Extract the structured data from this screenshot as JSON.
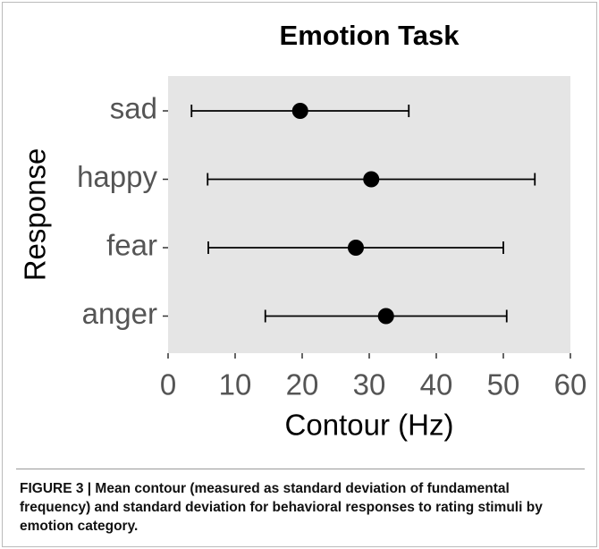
{
  "chart_data": {
    "type": "errorbar",
    "title": "Emotion Task",
    "xlabel": "Contour (Hz)",
    "ylabel": "Response",
    "categories": [
      "sad",
      "happy",
      "fear",
      "anger"
    ],
    "values": [
      19.7,
      30.3,
      28,
      32.5
    ],
    "errors": [
      16.2,
      24.4,
      22,
      18
    ],
    "color": "#000000",
    "panel_color": "#e5e5e5",
    "xlim": [
      0,
      60
    ],
    "xticks": [
      0,
      10,
      20,
      30,
      40,
      50,
      60
    ],
    "grid": false
  },
  "caption": "FIGURE 3 | Mean contour (measured as standard deviation of fundamental frequency) and standard deviation for behavioral responses to rating stimuli by emotion category."
}
